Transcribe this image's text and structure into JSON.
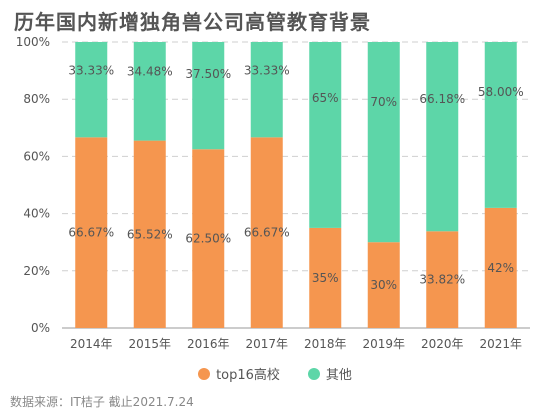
{
  "chart_data": {
    "type": "bar",
    "stacked": true,
    "title": "历年国内新增独角兽公司高管教育背景",
    "categories": [
      "2014年",
      "2015年",
      "2016年",
      "2017年",
      "2018年",
      "2019年",
      "2020年",
      "2021年"
    ],
    "series": [
      {
        "name": "top16高校",
        "color": "#f5964f",
        "values": [
          66.67,
          65.52,
          62.5,
          66.67,
          35,
          30,
          33.82,
          42
        ],
        "labels": [
          "66.67%",
          "65.52%",
          "62.50%",
          "66.67%",
          "35%",
          "30%",
          "33.82%",
          "42%"
        ]
      },
      {
        "name": "其他",
        "color": "#5dd6a8",
        "values": [
          33.33,
          34.48,
          37.5,
          33.33,
          65,
          70,
          66.18,
          58
        ],
        "labels": [
          "33.33%",
          "34.48%",
          "37.50%",
          "33.33%",
          "65%",
          "70%",
          "66.18%",
          "58.00%"
        ]
      }
    ],
    "ylim": [
      0,
      100
    ],
    "yticks": [
      "0%",
      "20%",
      "40%",
      "60%",
      "80%",
      "100%"
    ],
    "grid": true,
    "legend_position": "bottom"
  },
  "source_text": "数据来源：IT桔子 截止2021.7.24"
}
